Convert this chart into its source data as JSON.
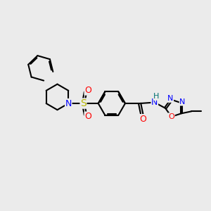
{
  "bg_color": "#ebebeb",
  "bond_color": "#000000",
  "bond_width": 1.5,
  "atom_colors": {
    "N": "#0000ff",
    "O": "#ff0000",
    "S": "#b8b800",
    "H": "#007070",
    "C": "#000000"
  },
  "font_size": 9,
  "fig_width": 3.0,
  "fig_height": 3.0,
  "dpi": 100,
  "xlim": [
    0,
    10
  ],
  "ylim": [
    0,
    10
  ]
}
